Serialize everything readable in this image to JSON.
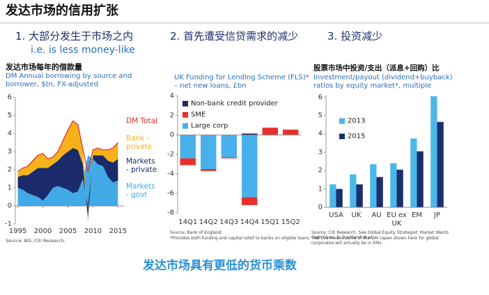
{
  "header": {
    "title": "发达市场的信用扩张"
  },
  "sections": [
    {
      "heading": "1. 大部分发生于市场之内",
      "subheading": "i.e. is less money-like"
    },
    {
      "heading": "2. 首先遭受信贷需求的减少"
    },
    {
      "heading": "3. 投资减少"
    }
  ],
  "chart_data": [
    {
      "type": "area",
      "stacked": true,
      "title": "发达市场每年的借款量",
      "subtitle": "DM Annual borrowing by source and borrower, $tn, FX-adjusted",
      "x": [
        1995,
        1996,
        1997,
        1998,
        1999,
        2000,
        2001,
        2002,
        2003,
        2004,
        2005,
        2006,
        2007,
        2008,
        2009,
        2010,
        2011,
        2012,
        2013,
        2014,
        2015
      ],
      "xlim": [
        1994.5,
        2016.2
      ],
      "xticks": [
        1995,
        2000,
        2005,
        2010,
        2015
      ],
      "ylim": [
        -1,
        6
      ],
      "yticks": [
        -1,
        0,
        1,
        2,
        3,
        4,
        5,
        6
      ],
      "series": [
        {
          "name": "Markets - govt",
          "color": "#41a9e6",
          "values": [
            1.0,
            0.9,
            0.7,
            0.6,
            0.5,
            0.3,
            0.6,
            1.0,
            1.1,
            1.0,
            0.9,
            0.7,
            0.8,
            1.5,
            2.8,
            2.6,
            2.3,
            2.2,
            1.6,
            1.3,
            1.4
          ]
        },
        {
          "name": "Markets - private",
          "color": "#1b2a6b",
          "values": [
            0.6,
            0.8,
            1.0,
            1.3,
            1.6,
            1.8,
            1.5,
            1.3,
            1.4,
            1.8,
            2.1,
            2.5,
            2.3,
            0.8,
            -0.7,
            0.2,
            0.5,
            0.6,
            0.9,
            1.1,
            1.2
          ]
        },
        {
          "name": "Bank - private",
          "color": "#f5b21b",
          "values": [
            0.3,
            0.4,
            0.5,
            0.6,
            0.7,
            0.8,
            0.5,
            0.4,
            0.5,
            0.8,
            1.2,
            1.5,
            1.4,
            0.8,
            -0.2,
            0.3,
            0.4,
            0.3,
            0.6,
            0.8,
            0.9
          ]
        },
        {
          "name": "DM Total",
          "color": "#e8302a",
          "type": "line",
          "values": [
            1.9,
            2.1,
            2.2,
            2.5,
            2.8,
            2.9,
            2.6,
            2.7,
            3.0,
            3.6,
            4.2,
            4.7,
            4.5,
            3.1,
            1.9,
            3.1,
            3.2,
            3.1,
            3.1,
            3.2,
            3.5
          ]
        }
      ],
      "source": "Source: BIS, Citi Research."
    },
    {
      "type": "bar",
      "stacked": true,
      "title": "UK Funding for Lending Scheme (FLS)* – net new loans, £bn",
      "categories": [
        "14Q1",
        "14Q2",
        "14Q3",
        "14Q4",
        "15Q1",
        "15Q2"
      ],
      "ylim": [
        -8,
        4
      ],
      "yticks": [
        -8,
        -6,
        -4,
        -2,
        0,
        2,
        4
      ],
      "legend": "upper left",
      "series": [
        {
          "name": "Non-bank credit provider",
          "color": "#1b2a6b",
          "values": [
            0,
            0,
            0,
            0.15,
            0,
            0
          ]
        },
        {
          "name": "SME",
          "color": "#e8302a",
          "values": [
            -0.7,
            -0.2,
            -0.1,
            -0.8,
            0.75,
            0.55
          ]
        },
        {
          "name": "Large corp",
          "color": "#48b0ea",
          "values": [
            -2.4,
            -3.5,
            -2.3,
            -6.4,
            0,
            0
          ]
        }
      ],
      "notes": [
        "Source: Bank of England.",
        "*Provides both funding and capital relief to banks on eligible loans."
      ]
    },
    {
      "type": "bar",
      "stacked": false,
      "title": "股票市场中投资/支出（派息+回购）比",
      "subtitle": "Investment/payout (dividend+buyback) ratios by equity market*, multiple",
      "categories": [
        "USA",
        "UK",
        "AU",
        "EU ex UK",
        "EM",
        "JP"
      ],
      "ylim": [
        0,
        6.1
      ],
      "yticks": [
        0,
        1,
        2,
        3,
        4,
        5,
        6
      ],
      "legend": "upper left",
      "series": [
        {
          "name": "2013",
          "color": "#4bb8e8",
          "values": [
            1.25,
            1.8,
            2.35,
            2.4,
            3.75,
            6.05
          ]
        },
        {
          "name": "2015",
          "color": "#1b2f6e",
          "values": [
            1.0,
            1.25,
            1.65,
            2.05,
            3.05,
            4.65
          ]
        }
      ],
      "notes": [
        "Source: Citi Research. See Global Equity Strategist: Market Wants Cash Cows, R. Buckland et al.",
        "*NB this means some of the DM capex shown here for global corporates will actually be in EMs."
      ]
    }
  ],
  "footer": {
    "conclusion": "发达市场具有更低的货币乘数"
  }
}
